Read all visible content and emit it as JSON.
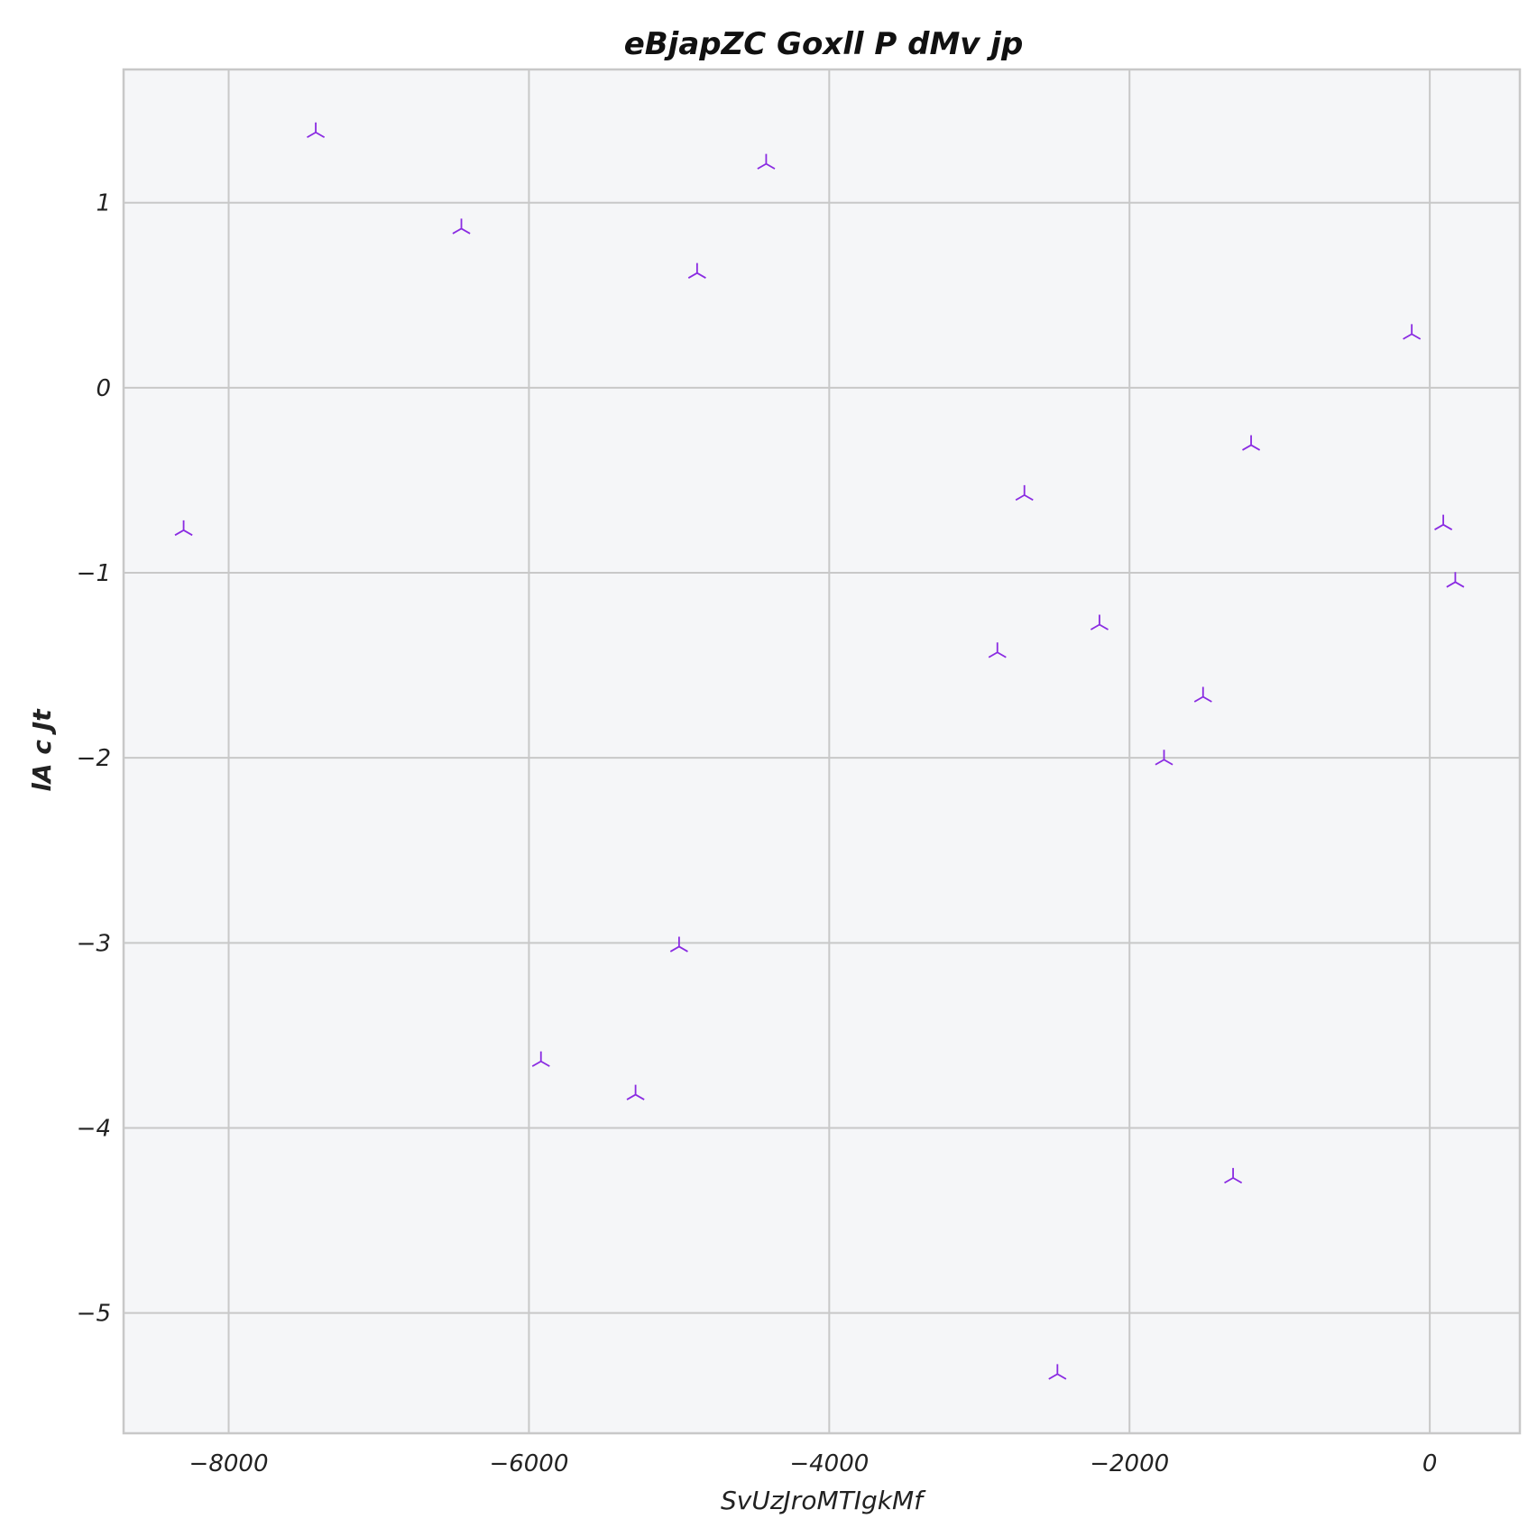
{
  "chart_data": {
    "type": "scatter",
    "title": "eBjapZC Goxll P dMv jp",
    "xlabel": "SvUzJroMTIgkMf",
    "ylabel": "lA c Jt",
    "xlim": [
      -8700,
      600
    ],
    "ylim": [
      -5.65,
      1.72
    ],
    "x_ticks": [
      -8000,
      -6000,
      -4000,
      -2000,
      0
    ],
    "x_tick_labels": [
      "−8000",
      "−6000",
      "−4000",
      "−2000",
      "0"
    ],
    "y_ticks": [
      1,
      0,
      -1,
      -2,
      -3,
      -4,
      -5
    ],
    "y_tick_labels": [
      "1",
      "0",
      "−1",
      "−2",
      "−3",
      "−4",
      "−5"
    ],
    "grid": true,
    "marker": "tri_down",
    "marker_color": "#8a2be2",
    "plot_background": "#f5f6f8",
    "grid_color": "#c8c8c8",
    "points": [
      {
        "x": -8300,
        "y": -0.77
      },
      {
        "x": -7420,
        "y": 1.38
      },
      {
        "x": -6450,
        "y": 0.86
      },
      {
        "x": -5920,
        "y": -3.64
      },
      {
        "x": -5290,
        "y": -3.82
      },
      {
        "x": -5000,
        "y": -3.02
      },
      {
        "x": -4880,
        "y": 0.62
      },
      {
        "x": -4420,
        "y": 1.21
      },
      {
        "x": -2880,
        "y": -1.43
      },
      {
        "x": -2700,
        "y": -0.58
      },
      {
        "x": -2480,
        "y": -5.33
      },
      {
        "x": -2200,
        "y": -1.28
      },
      {
        "x": -1770,
        "y": -2.01
      },
      {
        "x": -1510,
        "y": -1.67
      },
      {
        "x": -1310,
        "y": -4.27
      },
      {
        "x": -1190,
        "y": -0.31
      },
      {
        "x": -120,
        "y": 0.29
      },
      {
        "x": 90,
        "y": -0.74
      },
      {
        "x": 170,
        "y": -1.05
      }
    ]
  }
}
